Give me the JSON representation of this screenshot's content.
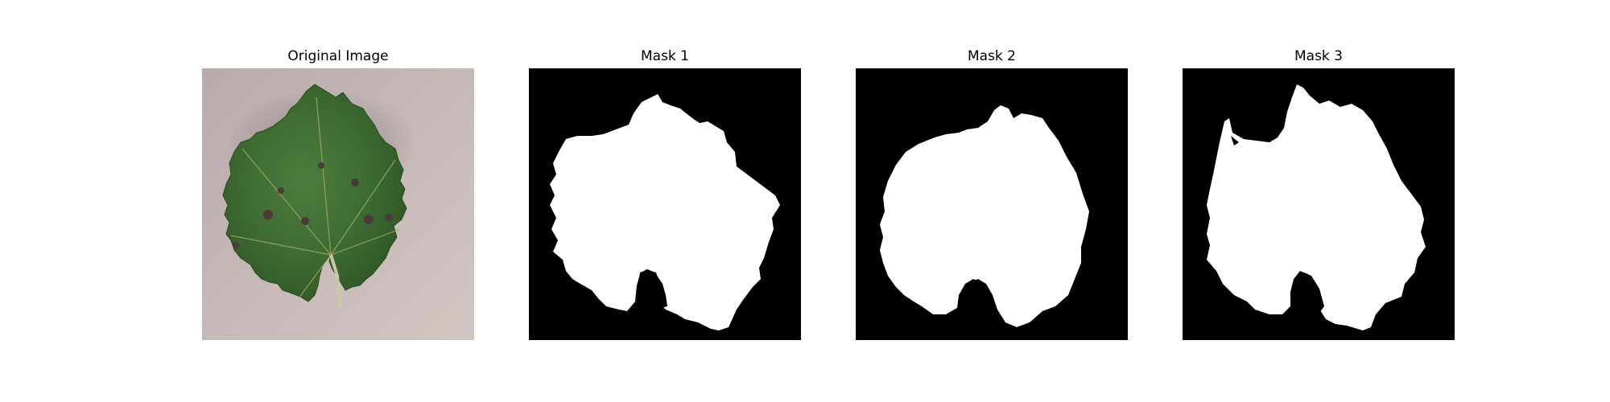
{
  "figure": {
    "panels": [
      {
        "title": "Original Image"
      },
      {
        "title": "Mask 1"
      },
      {
        "title": "Mask 2"
      },
      {
        "title": "Mask 3"
      }
    ],
    "colors": {
      "background": "#ffffff",
      "mask_background": "#000000",
      "mask_foreground": "#ffffff",
      "leaf_green": "#3f6f33",
      "surface_gray": "#c9bcbc"
    }
  }
}
